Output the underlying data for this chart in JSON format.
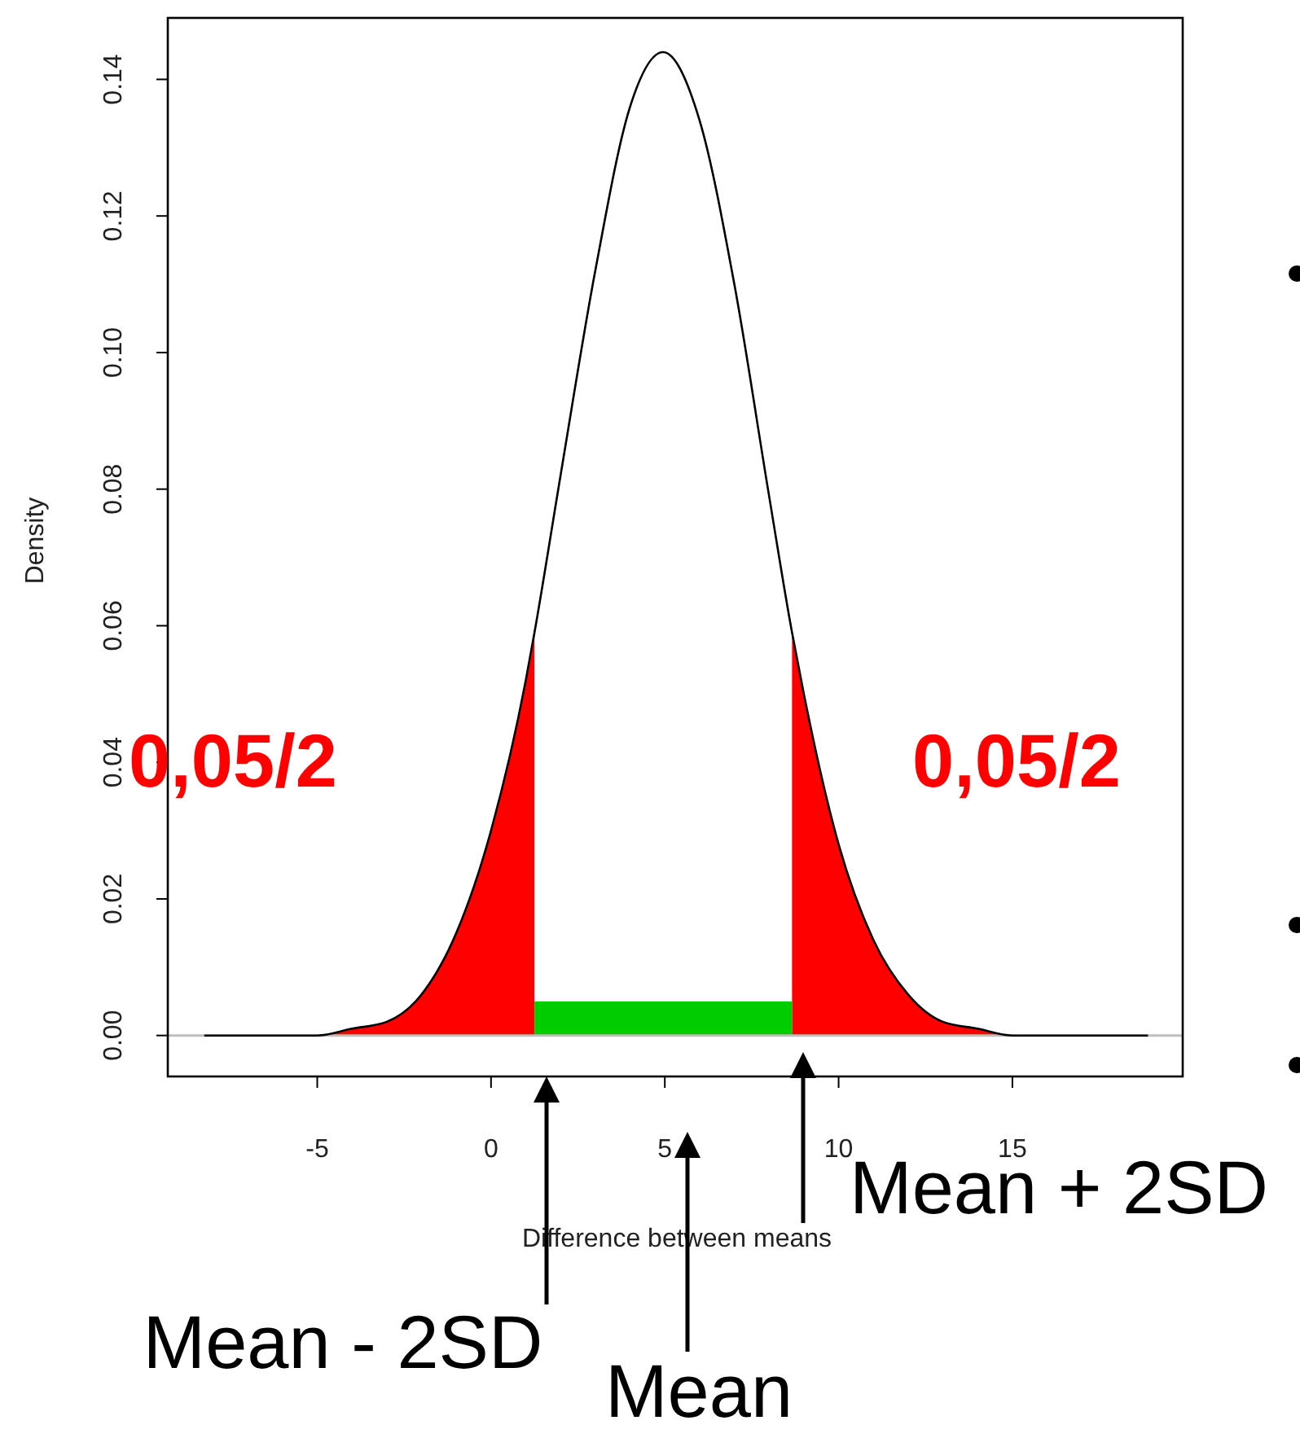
{
  "chart_data": {
    "type": "line",
    "xlabel": "Difference between means",
    "ylabel": "Density",
    "xlim": [
      -9.3,
      19.9
    ],
    "ylim": [
      -0.006,
      0.149
    ],
    "xticks": [
      -5,
      0,
      5,
      10,
      15
    ],
    "yticks": [
      {
        "value": 0,
        "label": "0.00"
      },
      {
        "value": 0.02,
        "label": "0.02"
      },
      {
        "value": 0.04,
        "label": "0.04"
      },
      {
        "value": 0.06,
        "label": "0.06"
      },
      {
        "value": 0.08,
        "label": "0.08"
      },
      {
        "value": 0.1,
        "label": "0.10"
      },
      {
        "value": 0.12,
        "label": "0.12"
      },
      {
        "value": 0.14,
        "label": "0.14"
      }
    ],
    "ref_lines": [
      {
        "axis": "y",
        "value": 0,
        "color": "#bebebe"
      }
    ],
    "series": [
      {
        "type": "area",
        "color": "#ff0000",
        "x": [
          -8.25,
          -6,
          -5,
          -4,
          -3,
          -2,
          -1,
          0,
          1,
          1.25
        ],
        "values": [
          0.0,
          0.0,
          0.0,
          0.001,
          0.002,
          0.006,
          0.015,
          0.03,
          0.052,
          0.059
        ]
      },
      {
        "type": "area",
        "color": "#ff0000",
        "x": [
          8.66,
          9,
          10,
          11,
          12,
          13,
          14,
          15,
          16,
          18.9
        ],
        "values": [
          0.059,
          0.05,
          0.028,
          0.014,
          0.006,
          0.002,
          0.001,
          0.0,
          0.0,
          0.0
        ]
      },
      {
        "type": "area",
        "color": "#00cd00",
        "x": [
          1.25,
          8.66
        ],
        "values": [
          0.005,
          0.005
        ]
      },
      {
        "color": "#000000",
        "x": [
          -8.25,
          -6,
          -5,
          -4,
          -3,
          -2,
          -1,
          0,
          1,
          1.25,
          2,
          3,
          4,
          4.95,
          6,
          7,
          8,
          8.66,
          9,
          10,
          11,
          12,
          13,
          14,
          15,
          16,
          18.9
        ],
        "values": [
          0.0,
          0.0,
          0.0,
          0.001,
          0.002,
          0.006,
          0.015,
          0.03,
          0.052,
          0.059,
          0.082,
          0.112,
          0.136,
          0.144,
          0.134,
          0.11,
          0.079,
          0.059,
          0.05,
          0.028,
          0.014,
          0.006,
          0.002,
          0.001,
          0.0,
          0.0,
          0.0
        ]
      }
    ],
    "annotations": [
      "0,05/2",
      "0,05/2",
      "Mean - 2SD",
      "Mean",
      "Mean + 2SD"
    ]
  }
}
